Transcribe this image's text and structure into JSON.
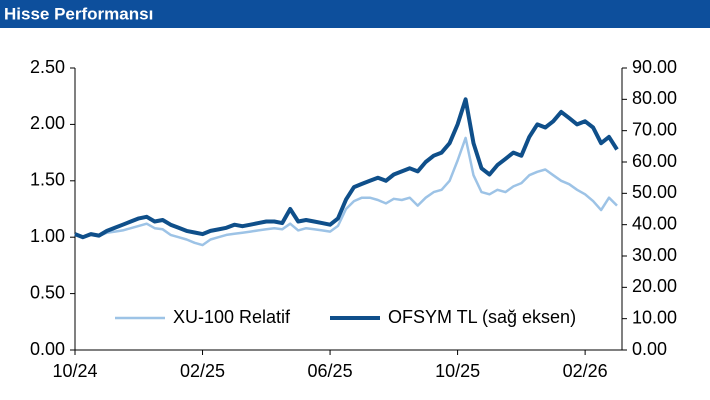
{
  "chart_data": {
    "type": "line",
    "title": "Hisse Performansı",
    "categories": [
      "10/24",
      null,
      null,
      null,
      null,
      null,
      null,
      null,
      null,
      null,
      null,
      null,
      null,
      null,
      null,
      null,
      "02/25",
      null,
      null,
      null,
      null,
      null,
      null,
      null,
      null,
      null,
      null,
      null,
      null,
      null,
      null,
      null,
      "06/25",
      null,
      null,
      null,
      null,
      null,
      null,
      null,
      null,
      null,
      null,
      null,
      null,
      null,
      null,
      null,
      "10/25",
      null,
      null,
      null,
      null,
      null,
      null,
      null,
      null,
      null,
      null,
      null,
      null,
      null,
      null,
      null,
      "02/26",
      null,
      null,
      null,
      null
    ],
    "series": [
      {
        "name": "XU-100 Relatif",
        "color": "#9dc3e6",
        "axis": "y",
        "values": [
          1.03,
          1.0,
          1.02,
          1.01,
          1.04,
          1.05,
          1.06,
          1.08,
          1.1,
          1.12,
          1.08,
          1.07,
          1.02,
          1.0,
          0.98,
          0.95,
          0.93,
          0.98,
          1.0,
          1.02,
          1.03,
          1.04,
          1.05,
          1.06,
          1.07,
          1.08,
          1.07,
          1.12,
          1.06,
          1.08,
          1.07,
          1.06,
          1.05,
          1.1,
          1.25,
          1.32,
          1.35,
          1.35,
          1.33,
          1.3,
          1.34,
          1.33,
          1.35,
          1.28,
          1.35,
          1.4,
          1.42,
          1.5,
          1.68,
          1.88,
          1.55,
          1.4,
          1.38,
          1.42,
          1.4,
          1.45,
          1.48,
          1.55,
          1.58,
          1.6,
          1.55,
          1.5,
          1.47,
          1.42,
          1.38,
          1.32,
          1.24,
          1.35,
          1.28
        ]
      },
      {
        "name": "OFSYM TL (sağ eksen)",
        "color": "#0f4f8a",
        "axis": "y2",
        "values": [
          37,
          36,
          37,
          36.5,
          38,
          39,
          40,
          41,
          42,
          42.5,
          41,
          41.5,
          40,
          39,
          38,
          37.5,
          37,
          38,
          38.5,
          39,
          40,
          39.5,
          40,
          40.5,
          41,
          41,
          40.5,
          45,
          41,
          41.5,
          41,
          40.5,
          40,
          42,
          48,
          52,
          53,
          54,
          55,
          54,
          56,
          57,
          58,
          57,
          60,
          62,
          63,
          66,
          72,
          80,
          66,
          58,
          56,
          59,
          61,
          63,
          62,
          68,
          72,
          71,
          73,
          76,
          74,
          72,
          73,
          71,
          66,
          68,
          64
        ]
      }
    ],
    "ylim": [
      0,
      2.5
    ],
    "yticks": [
      {
        "value": 0,
        "label": "0.00"
      },
      {
        "value": 0.5,
        "label": "0.50"
      },
      {
        "value": 1,
        "label": "1.00"
      },
      {
        "value": 1.5,
        "label": "1.50"
      },
      {
        "value": 2,
        "label": "2.00"
      },
      {
        "value": 2.5,
        "label": "2.50"
      }
    ],
    "y2lim": [
      0,
      90
    ],
    "y2ticks": [
      {
        "value": 0,
        "label": "0.00"
      },
      {
        "value": 10,
        "label": "10.00"
      },
      {
        "value": 20,
        "label": "20.00"
      },
      {
        "value": 30,
        "label": "30.00"
      },
      {
        "value": 40,
        "label": "40.00"
      },
      {
        "value": 50,
        "label": "50.00"
      },
      {
        "value": 60,
        "label": "60.00"
      },
      {
        "value": 70,
        "label": "70.00"
      },
      {
        "value": 80,
        "label": "80.00"
      },
      {
        "value": 90,
        "label": "90.00"
      }
    ],
    "grid": false,
    "legend": "lower center"
  }
}
